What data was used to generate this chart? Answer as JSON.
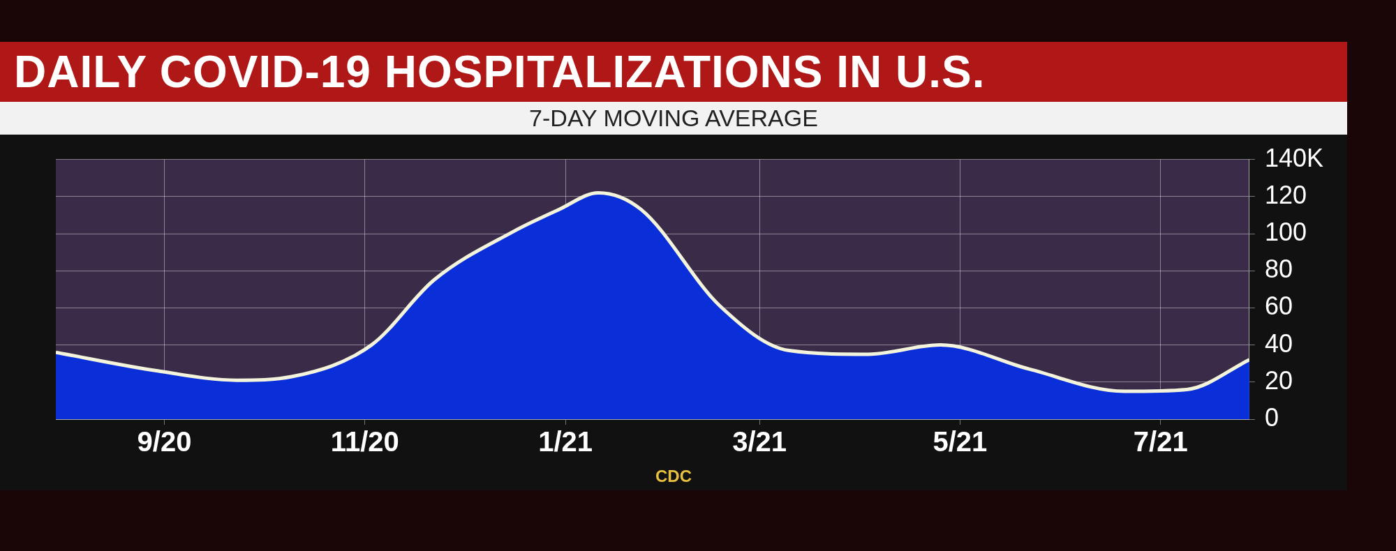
{
  "chart_data": {
    "type": "area",
    "title": "DAILY COVID-19 HOSPITALIZATIONS IN U.S.",
    "subtitle": "7-DAY MOVING AVERAGE",
    "x": [
      "2020-07-30",
      "2020-08-30",
      "2020-09-23",
      "2020-10-10",
      "2020-11-03",
      "2020-11-22",
      "2020-12-16",
      "2020-12-30",
      "2021-01-11",
      "2021-01-24",
      "2021-02-17",
      "2021-03-10",
      "2021-04-03",
      "2021-04-25",
      "2021-05-22",
      "2021-06-20",
      "2021-07-09",
      "2021-07-28"
    ],
    "series": [
      {
        "color": "#0a2fd8",
        "values": [
          36,
          26,
          21,
          23,
          40,
          75,
          101,
          113,
          122,
          113,
          61,
          37,
          35,
          40,
          27,
          15,
          16,
          32
        ]
      }
    ],
    "xlim": [
      "2020-07-30",
      "2021-07-28"
    ],
    "xticks": [
      {
        "value": "2020-09-01",
        "label": "9/20"
      },
      {
        "value": "2020-11-01",
        "label": "11/20"
      },
      {
        "value": "2021-01-01",
        "label": "1/21"
      },
      {
        "value": "2021-03-01",
        "label": "3/21"
      },
      {
        "value": "2021-05-01",
        "label": "5/21"
      },
      {
        "value": "2021-07-01",
        "label": "7/21"
      }
    ],
    "ylim": [
      0,
      140
    ],
    "yticks": [
      0,
      20,
      40,
      60,
      80,
      100,
      120,
      {
        "value": 140,
        "label": "140K"
      }
    ],
    "grid": true,
    "annotations": [
      "CDC"
    ]
  }
}
